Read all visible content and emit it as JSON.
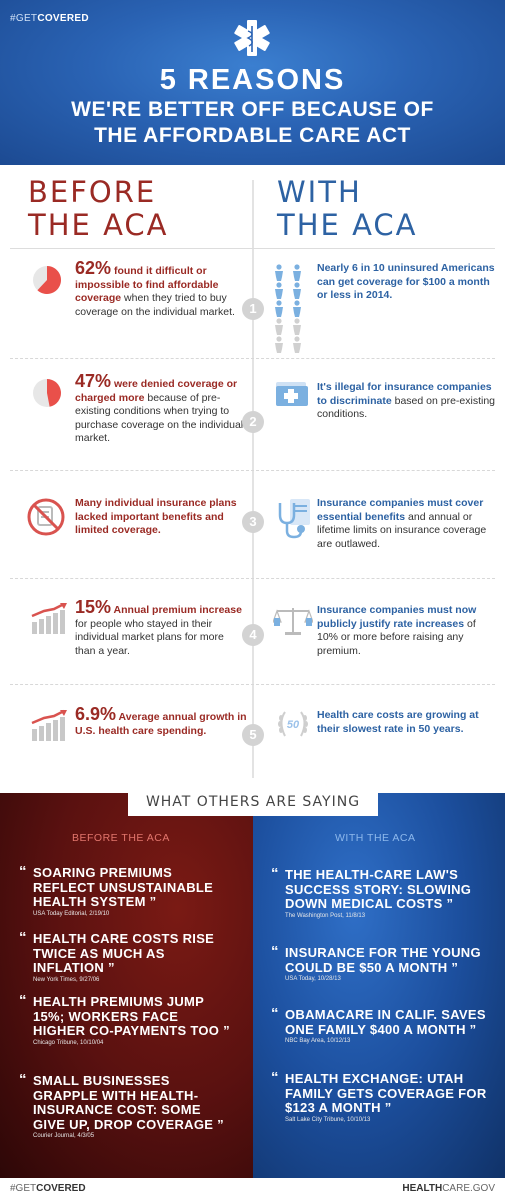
{
  "header": {
    "hashtag_prefix": "#GET",
    "hashtag_bold": "COVERED",
    "title_line1": "5 REASONS",
    "title_line2": "WE'RE BETTER OFF BECAUSE OF",
    "title_line3": "THE AFFORDABLE CARE ACT"
  },
  "columns": {
    "before_line1": "BEFORE",
    "before_line2": "THE ACA",
    "with_line1": "WITH",
    "with_line2": "THE ACA"
  },
  "reasons": [
    {
      "number": "1",
      "before_big": "62%",
      "before_red": " found it difficult or impossible to find affordable coverage",
      "before_rest": " when they tried to buy coverage on the individual market.",
      "pie_fraction": 0.62,
      "with_blue": "Nearly 6 in 10 uninsured Americans can get coverage for $100 a month or less in 2014.",
      "with_rest": ""
    },
    {
      "number": "2",
      "before_big": "47%",
      "before_red": " were denied coverage or charged more",
      "before_rest": " because of pre-existing conditions when trying to purchase coverage on the individual market.",
      "pie_fraction": 0.47,
      "with_blue": "It's illegal for insurance companies to discriminate",
      "with_rest": " based on pre-existing conditions."
    },
    {
      "number": "3",
      "before_big": "",
      "before_red": "Many individual insurance plans lacked important benefits and limited coverage.",
      "before_rest": "",
      "with_blue": "Insurance companies must cover essential benefits",
      "with_rest": " and annual or lifetime limits on insurance coverage are outlawed."
    },
    {
      "number": "4",
      "before_big": "15%",
      "before_red": " Annual premium increase",
      "before_rest": " for people who stayed in their individual market plans for more than a year.",
      "with_blue": "Insurance companies must now publicly justify rate increases",
      "with_rest": " of 10% or more before raising any premium."
    },
    {
      "number": "5",
      "before_big": "6.9%",
      "before_red": " Average annual growth in U.S. health care spending.",
      "before_rest": "",
      "badge_text": "50",
      "with_blue": "Health care costs are growing at their slowest rate in 50 years.",
      "with_rest": ""
    }
  ],
  "others": {
    "title": "WHAT OTHERS ARE SAYING",
    "before_head": "BEFORE THE ACA",
    "with_head": "WITH THE ACA",
    "before_quotes": [
      {
        "text": "SOARING PREMIUMS REFLECT UNSUSTAINABLE HEALTH SYSTEM",
        "source": "USA Today Editorial, 2/19/10"
      },
      {
        "text": "HEALTH CARE COSTS RISE TWICE AS MUCH AS INFLATION",
        "source": "New York Times, 9/27/06"
      },
      {
        "text": "HEALTH PREMIUMS JUMP 15%; WORKERS FACE HIGHER CO-PAYMENTS TOO",
        "source": "Chicago Tribune, 10/10/04"
      },
      {
        "text": "SMALL BUSINESSES GRAPPLE WITH HEALTH-INSURANCE COST: SOME GIVE UP, DROP COVERAGE",
        "source": "Courier Journal, 4/3/05"
      }
    ],
    "with_quotes": [
      {
        "text": "THE HEALTH-CARE LAW'S SUCCESS STORY: SLOWING DOWN MEDICAL COSTS",
        "source": "The Washington Post, 11/8/13"
      },
      {
        "text": "INSURANCE FOR THE YOUNG COULD BE $50 A MONTH",
        "source": "USA Today, 10/28/13"
      },
      {
        "text": "OBAMACARE IN CALIF. SAVES ONE FAMILY $400 A MONTH",
        "source": "NBC Bay Area, 10/12/13"
      },
      {
        "text": "HEALTH EXCHANGE: UTAH FAMILY GETS COVERAGE FOR $123 A MONTH",
        "source": "Salt Lake City Tribune, 10/10/13"
      }
    ]
  },
  "footer": {
    "left_prefix": "#GET",
    "left_bold": "COVERED",
    "right_bold": "HEALTH",
    "right_rest": "CARE.GOV"
  },
  "colors": {
    "before_red": "#9a2a24",
    "with_blue": "#2d62a3",
    "header_blue": "#2a63b4"
  }
}
